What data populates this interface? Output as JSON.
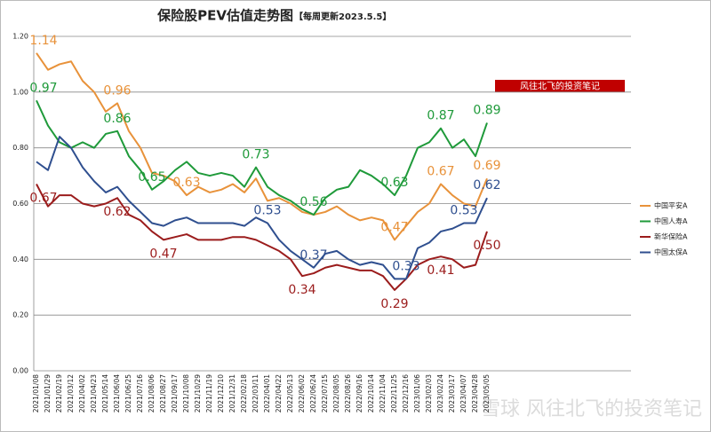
{
  "chart_data": {
    "type": "line",
    "title": "保险股PEV估值走势图",
    "subtitle": "【每周更新2023.5.5】",
    "banner": "风往北飞的投资笔记",
    "watermark": "雪球 风往北飞的投资笔记",
    "categories": [
      "2021/01/08",
      "2021/01/29",
      "2021/02/19",
      "2021/03/12",
      "2021/04/02",
      "2021/04/23",
      "2021/05/14",
      "2021/06/04",
      "2021/06/25",
      "2021/07/16",
      "2021/08/06",
      "2021/08/27",
      "2021/09/17",
      "2021/10/08",
      "2021/10/29",
      "2021/11/19",
      "2021/12/10",
      "2021/12/31",
      "2022/02/18",
      "2022/03/11",
      "2022/04/01",
      "2022/04/22",
      "2022/05/13",
      "2022/06/02",
      "2022/06/24",
      "2022/07/15",
      "2022/08/05",
      "2022/08/26",
      "2022/09/16",
      "2022/10/14",
      "2022/11/04",
      "2022/11/25",
      "2022/12/16",
      "2023/01/06",
      "2023/02/03",
      "2023/02/24",
      "2023/03/17",
      "2023/04/07",
      "2023/04/28",
      "2023/05/05"
    ],
    "series": [
      {
        "name": "中国平安A",
        "color": "#e8923a",
        "values": [
          1.14,
          1.08,
          1.1,
          1.11,
          1.04,
          1.0,
          0.93,
          0.96,
          0.86,
          0.8,
          0.71,
          0.7,
          0.68,
          0.63,
          0.66,
          0.64,
          0.65,
          0.67,
          0.64,
          0.69,
          0.61,
          0.62,
          0.6,
          0.57,
          0.56,
          0.57,
          0.59,
          0.56,
          0.54,
          0.55,
          0.54,
          0.47,
          0.52,
          0.57,
          0.6,
          0.67,
          0.63,
          0.6,
          0.59,
          0.69
        ],
        "value_labels": [
          "1.14",
          null,
          null,
          null,
          null,
          null,
          null,
          "0.96",
          null,
          null,
          null,
          null,
          null,
          "0.63",
          null,
          null,
          null,
          null,
          null,
          null,
          null,
          null,
          null,
          null,
          null,
          null,
          null,
          null,
          null,
          null,
          null,
          "0.47",
          null,
          null,
          null,
          "0.67",
          null,
          null,
          null,
          "0.69"
        ]
      },
      {
        "name": "中国人寿A",
        "color": "#1f9a3a",
        "values": [
          0.97,
          0.88,
          0.82,
          0.8,
          0.82,
          0.8,
          0.85,
          0.86,
          0.77,
          0.72,
          0.65,
          0.68,
          0.72,
          0.75,
          0.71,
          0.7,
          0.71,
          0.7,
          0.66,
          0.73,
          0.66,
          0.63,
          0.61,
          0.58,
          0.56,
          0.62,
          0.65,
          0.66,
          0.72,
          0.7,
          0.67,
          0.63,
          0.7,
          0.8,
          0.82,
          0.87,
          0.8,
          0.83,
          0.77,
          0.89
        ],
        "value_labels": [
          "0.97",
          null,
          null,
          null,
          null,
          null,
          null,
          "0.86",
          null,
          null,
          "0.65",
          null,
          null,
          null,
          null,
          null,
          null,
          null,
          null,
          "0.73",
          null,
          null,
          null,
          null,
          "0.56",
          null,
          null,
          null,
          null,
          null,
          null,
          "0.63",
          null,
          null,
          null,
          "0.87",
          null,
          null,
          null,
          "0.89"
        ]
      },
      {
        "name": "新华保险A",
        "color": "#9b1c1c",
        "values": [
          0.67,
          0.59,
          0.63,
          0.63,
          0.6,
          0.59,
          0.6,
          0.62,
          0.56,
          0.54,
          0.5,
          0.47,
          0.48,
          0.49,
          0.47,
          0.47,
          0.47,
          0.48,
          0.48,
          0.47,
          0.45,
          0.43,
          0.4,
          0.34,
          0.35,
          0.37,
          0.38,
          0.37,
          0.36,
          0.36,
          0.34,
          0.29,
          0.33,
          0.38,
          0.4,
          0.41,
          0.4,
          0.37,
          0.38,
          0.5
        ],
        "value_labels": [
          "0.67",
          null,
          null,
          null,
          null,
          null,
          null,
          "0.62",
          null,
          null,
          null,
          "0.47",
          null,
          null,
          null,
          null,
          null,
          null,
          null,
          null,
          null,
          null,
          null,
          "0.34",
          null,
          null,
          null,
          null,
          null,
          null,
          null,
          "0.29",
          null,
          null,
          null,
          "0.41",
          null,
          null,
          null,
          "0.50"
        ]
      },
      {
        "name": "中国太保A",
        "color": "#2f4f8f",
        "values": [
          0.75,
          0.72,
          0.84,
          0.8,
          0.73,
          0.68,
          0.64,
          0.66,
          0.61,
          0.57,
          0.53,
          0.52,
          0.54,
          0.55,
          0.53,
          0.53,
          0.53,
          0.53,
          0.52,
          0.55,
          0.53,
          0.47,
          0.43,
          0.4,
          0.37,
          0.42,
          0.43,
          0.4,
          0.38,
          0.39,
          0.38,
          0.33,
          0.33,
          0.44,
          0.46,
          0.5,
          0.51,
          0.53,
          0.53,
          0.62
        ],
        "value_labels": [
          null,
          null,
          null,
          null,
          null,
          null,
          null,
          null,
          null,
          null,
          null,
          null,
          null,
          null,
          null,
          null,
          null,
          null,
          null,
          null,
          "0.53",
          null,
          null,
          null,
          "0.37",
          null,
          null,
          null,
          null,
          null,
          null,
          null,
          "0.33",
          null,
          null,
          null,
          null,
          "0.53",
          null,
          "0.62"
        ]
      }
    ],
    "ylim": [
      0,
      1.2
    ],
    "yticks": [
      {
        "value": 0,
        "label": "0.00"
      },
      {
        "value": 0.2,
        "label": "0.20"
      },
      {
        "value": 0.4,
        "label": "0.40"
      },
      {
        "value": 0.6,
        "label": "0.60"
      },
      {
        "value": 0.8,
        "label": "0.80"
      },
      {
        "value": 1.0,
        "label": "1.00"
      },
      {
        "value": 1.2,
        "label": "1.20"
      }
    ],
    "grid": true,
    "legend": "right"
  }
}
